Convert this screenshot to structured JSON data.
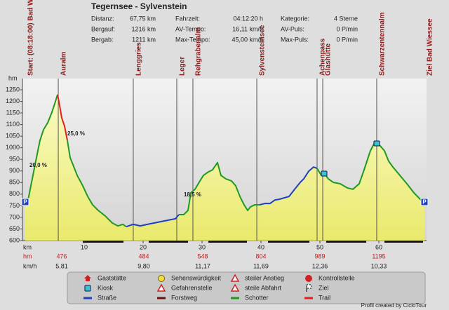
{
  "chart_data": {
    "type": "area",
    "title": "Tegernsee - Sylvenstein",
    "stats": [
      [
        "Distanz:",
        "67,75 km",
        "Fahrzeit:",
        "04:12:20 h",
        "Kategorie:",
        "4 Sterne"
      ],
      [
        "Bergauf:",
        "1216 km",
        "AV-Tempo:",
        "16,11 km/h",
        "AV-Puls:",
        "0 P/min"
      ],
      [
        "Bergab:",
        "1211 km",
        "Max-Tempo:",
        "45,00 km/h",
        "Max-Puls:",
        "0 P/min"
      ]
    ],
    "xlabel": "km",
    "ylabel": "hm",
    "xlim": [
      0,
      68
    ],
    "ylim": [
      600,
      1250
    ],
    "xticks": [
      10,
      20,
      30,
      40,
      50,
      60
    ],
    "yticks": [
      600,
      650,
      700,
      750,
      800,
      850,
      900,
      950,
      1000,
      1050,
      1100,
      1150,
      1200,
      1250
    ],
    "waypoints": [
      {
        "label": "Start: (08:18:00) Bad Wiessee",
        "km": 0
      },
      {
        "label": "Auralm",
        "km": 5.6
      },
      {
        "label": "Lenggries",
        "km": 18.33
      },
      {
        "label": "Leger",
        "km": 25.71
      },
      {
        "label": "Rehgrabenalm",
        "km": 28.45
      },
      {
        "label": "Sylvensteinsee",
        "km": 39.29
      },
      {
        "label": "Achenpass",
        "km": 49.52
      },
      {
        "label": "Glashütte",
        "km": 50.48
      },
      {
        "label": "Schwarzentennalm",
        "km": 59.64
      },
      {
        "label": "Ziel Bad Wiessee",
        "km": 67.74
      }
    ],
    "annotations": [
      "20,0 %",
      "25,0 %",
      "18,5 %"
    ],
    "markers": [
      "P",
      "P"
    ],
    "series": [
      {
        "name": "Schotter",
        "color": "#1f9a1f",
        "x": [
          0,
          0.48,
          1.07,
          1.9,
          2.5,
          3.1,
          3.81,
          4.52,
          5,
          5.48,
          null,
          7.14,
          7.62,
          8.1,
          8.81,
          9.76,
          10.6,
          11.43,
          12.38,
          13.57,
          14.76,
          15.71,
          16.55,
          17.14,
          null,
          26.07,
          26.9,
          27.62,
          28.1,
          28.81,
          29.64,
          30.24,
          31.07,
          31.79,
          32.62,
          33.21,
          34.05,
          35,
          35.71,
          36.43,
          37.14,
          37.74,
          38.21,
          38.93,
          39.76,
          null,
          49.52,
          50.24,
          50.71,
          51.43,
          52.26,
          53.45,
          54.64,
          55.6,
          56.67,
          57.38,
          57.98,
          58.57,
          59.17,
          59.64,
          60.24,
          60.95,
          61.67,
          62.38,
          63.57,
          64.76,
          65.95,
          67.14,
          67.74
        ],
        "values": [
          760,
          775,
          851,
          957,
          1032,
          1078,
          1108,
          1153,
          1190,
          1229,
          null,
          1032,
          957,
          927,
          881,
          836,
          790,
          754,
          730,
          706,
          676,
          663,
          670,
          660,
          null,
          712,
          712,
          730,
          806,
          821,
          857,
          881,
          896,
          905,
          936,
          881,
          866,
          857,
          836,
          790,
          754,
          730,
          745,
          754,
          754,
          null,
          911,
          881,
          890,
          866,
          851,
          845,
          827,
          821,
          845,
          896,
          942,
          987,
          1017,
          1020,
          1008,
          987,
          942,
          917,
          881,
          845,
          806,
          775,
          760
        ]
      },
      {
        "name": "Trail",
        "color": "#e02020",
        "x": [
          5.48,
          5.83,
          6.19,
          6.67,
          7.14
        ],
        "values": [
          1229,
          1183,
          1129,
          1093,
          1032
        ]
      },
      {
        "name": "Straße",
        "color": "#1f3fbf",
        "x": [
          17.14,
          18.33,
          19.52,
          20.71,
          21.9,
          23.1,
          24.29,
          25.48,
          26.07,
          null,
          39.76,
          40.71,
          41.55,
          42.38,
          43.1,
          43.93,
          44.76,
          45.71,
          46.67,
          47.26,
          48.1,
          48.93,
          49.52
        ],
        "values": [
          660,
          670,
          663,
          670,
          676,
          682,
          688,
          694,
          712,
          null,
          754,
          760,
          760,
          775,
          778,
          784,
          790,
          821,
          851,
          866,
          899,
          917,
          911
        ]
      }
    ],
    "segments": {
      "hm_label": "hm",
      "kmh_label": "km/h",
      "hm": [
        476,
        484,
        548,
        804,
        989,
        1195
      ],
      "kmh": [
        "5,81",
        "9,80",
        "11,17",
        "11,69",
        "12,36",
        "10,33"
      ]
    },
    "legend": [
      "Gaststätte",
      "Sehenswürdigkeit",
      "steiler Anstieg",
      "Kontrollstelle",
      "Kiosk",
      "Gefahrenstelle",
      "steile Abfahrt",
      "Ziel",
      "Forstweg"
    ],
    "footer": "Profil created by CicloTour"
  }
}
